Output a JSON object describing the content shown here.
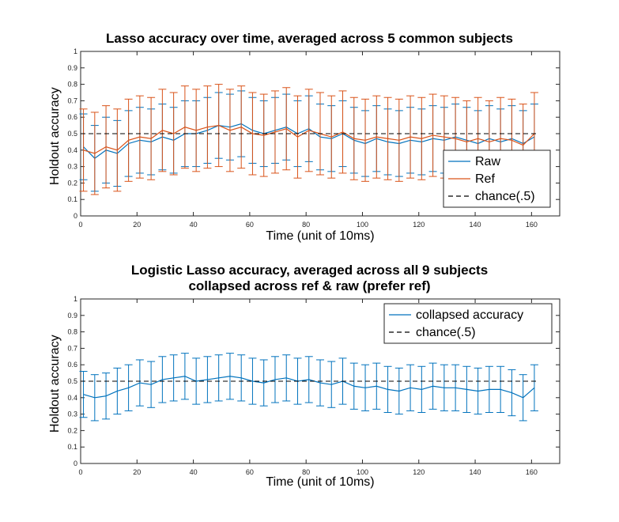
{
  "chart_data": [
    {
      "type": "line",
      "title": "Lasso accuracy over time, averaged across 5 common subjects",
      "xlabel": "Time (unit of 10ms)",
      "ylabel": "Holdout accuracy",
      "xlim": [
        0,
        170
      ],
      "ylim": [
        0,
        1
      ],
      "xticks": [
        "0",
        "20",
        "40",
        "60",
        "80",
        "100",
        "120",
        "140",
        "160"
      ],
      "yticks": [
        "0",
        "0.1",
        "0.2",
        "0.3",
        "0.4",
        "0.5",
        "0.6",
        "0.7",
        "0.8",
        "0.9",
        "1"
      ],
      "legend_position": "bottom-right inside",
      "grid": false,
      "series": [
        {
          "name": "Raw",
          "color": "#0072BD",
          "error_band": 0.2,
          "x": [
            1,
            5,
            9,
            13,
            17,
            21,
            25,
            29,
            33,
            37,
            41,
            45,
            49,
            53,
            57,
            61,
            65,
            69,
            73,
            77,
            81,
            85,
            89,
            93,
            97,
            101,
            105,
            109,
            113,
            117,
            121,
            125,
            129,
            133,
            137,
            141,
            145,
            149,
            153,
            157,
            161
          ],
          "values": [
            0.42,
            0.35,
            0.4,
            0.38,
            0.44,
            0.46,
            0.45,
            0.48,
            0.46,
            0.5,
            0.5,
            0.52,
            0.55,
            0.54,
            0.56,
            0.52,
            0.5,
            0.52,
            0.54,
            0.5,
            0.53,
            0.48,
            0.47,
            0.5,
            0.46,
            0.44,
            0.47,
            0.45,
            0.44,
            0.46,
            0.45,
            0.47,
            0.46,
            0.48,
            0.46,
            0.44,
            0.47,
            0.45,
            0.47,
            0.44,
            0.48
          ]
        },
        {
          "name": "Ref",
          "color": "#D95319",
          "error_band": 0.25,
          "x": [
            1,
            5,
            9,
            13,
            17,
            21,
            25,
            29,
            33,
            37,
            41,
            45,
            49,
            53,
            57,
            61,
            65,
            69,
            73,
            77,
            81,
            85,
            89,
            93,
            97,
            101,
            105,
            109,
            113,
            117,
            121,
            125,
            129,
            133,
            137,
            141,
            145,
            149,
            153,
            157,
            161
          ],
          "values": [
            0.4,
            0.38,
            0.42,
            0.4,
            0.46,
            0.48,
            0.47,
            0.52,
            0.5,
            0.54,
            0.52,
            0.54,
            0.55,
            0.52,
            0.54,
            0.5,
            0.49,
            0.51,
            0.53,
            0.48,
            0.52,
            0.5,
            0.48,
            0.51,
            0.47,
            0.46,
            0.48,
            0.47,
            0.46,
            0.48,
            0.47,
            0.49,
            0.48,
            0.47,
            0.45,
            0.47,
            0.45,
            0.47,
            0.46,
            0.43,
            0.5
          ]
        },
        {
          "name": "chance(.5)",
          "color": "#000000",
          "dashed": true,
          "x": [
            0,
            162
          ],
          "values": [
            0.5,
            0.5
          ]
        }
      ]
    },
    {
      "type": "line",
      "title": "Logistic Lasso accuracy, averaged across all 9 subjects",
      "subtitle": "collapsed across ref & raw (prefer ref)",
      "xlabel": "Time (unit of 10ms)",
      "ylabel": "Holdout accuracy",
      "xlim": [
        0,
        170
      ],
      "ylim": [
        0,
        1
      ],
      "xticks": [
        "0",
        "20",
        "40",
        "60",
        "80",
        "100",
        "120",
        "140",
        "160"
      ],
      "yticks": [
        "0",
        "0.1",
        "0.2",
        "0.3",
        "0.4",
        "0.5",
        "0.6",
        "0.7",
        "0.8",
        "0.9",
        "1"
      ],
      "legend_position": "top-right inside",
      "grid": false,
      "series": [
        {
          "name": "collapsed accuracy",
          "color": "#0072BD",
          "error_band": 0.14,
          "x": [
            1,
            5,
            9,
            13,
            17,
            21,
            25,
            29,
            33,
            37,
            41,
            45,
            49,
            53,
            57,
            61,
            65,
            69,
            73,
            77,
            81,
            85,
            89,
            93,
            97,
            101,
            105,
            109,
            113,
            117,
            121,
            125,
            129,
            133,
            137,
            141,
            145,
            149,
            153,
            157,
            161
          ],
          "values": [
            0.42,
            0.4,
            0.41,
            0.44,
            0.46,
            0.49,
            0.48,
            0.51,
            0.52,
            0.53,
            0.5,
            0.51,
            0.52,
            0.53,
            0.52,
            0.5,
            0.49,
            0.51,
            0.52,
            0.5,
            0.51,
            0.49,
            0.48,
            0.5,
            0.47,
            0.46,
            0.47,
            0.45,
            0.44,
            0.46,
            0.45,
            0.47,
            0.46,
            0.46,
            0.45,
            0.44,
            0.45,
            0.45,
            0.43,
            0.4,
            0.46
          ]
        },
        {
          "name": "chance(.5)",
          "color": "#000000",
          "dashed": true,
          "x": [
            0,
            162
          ],
          "values": [
            0.5,
            0.5
          ]
        }
      ]
    }
  ]
}
